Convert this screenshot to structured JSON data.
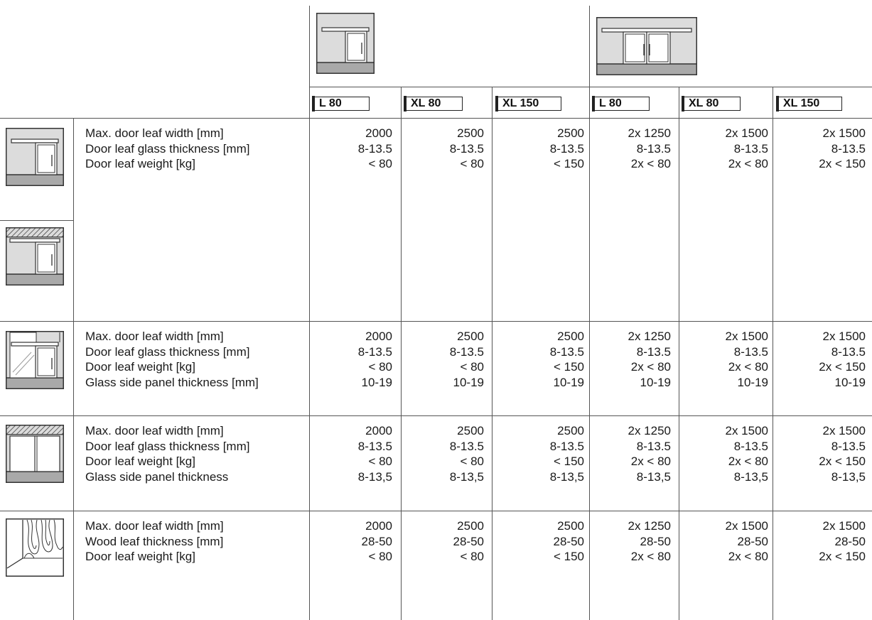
{
  "header": {
    "tags": [
      "L 80",
      "XL 80",
      "XL 150",
      "L 80",
      "XL 80",
      "XL 150"
    ],
    "group_icons": [
      "single-leaf-sliding-door-icon",
      "double-leaf-sliding-door-icon"
    ]
  },
  "sections": [
    {
      "icons": [
        "wall-mounted-sliding-door-icon",
        "ceiling-mounted-sliding-door-icon"
      ],
      "labels": [
        "Max. door leaf width [mm]",
        "Door leaf glass thickness [mm]",
        "Door leaf weight [kg]"
      ],
      "columns": [
        [
          "2000",
          "8-13.5",
          "< 80"
        ],
        [
          "2500",
          "8-13.5",
          "< 80"
        ],
        [
          "2500",
          "8-13.5",
          "< 150"
        ],
        [
          "2x 1250",
          "8-13.5",
          "2x < 80"
        ],
        [
          "2x 1500",
          "8-13.5",
          "2x < 80"
        ],
        [
          "2x 1500",
          "8-13.5",
          "2x < 150"
        ]
      ]
    },
    {
      "icons": [
        "glass-side-panel-door-icon"
      ],
      "labels": [
        "Max. door leaf width [mm]",
        "Door leaf glass thickness [mm]",
        "Door leaf weight [kg]",
        "Glass side panel thickness [mm]"
      ],
      "columns": [
        [
          "2000",
          "8-13.5",
          "< 80",
          "10-19"
        ],
        [
          "2500",
          "8-13.5",
          "< 80",
          "10-19"
        ],
        [
          "2500",
          "8-13.5",
          "< 150",
          "10-19"
        ],
        [
          "2x 1250",
          "8-13.5",
          "2x < 80",
          "10-19"
        ],
        [
          "2x 1500",
          "8-13.5",
          "2x < 80",
          "10-19"
        ],
        [
          "2x 1500",
          "8-13.5",
          "2x < 150",
          "10-19"
        ]
      ]
    },
    {
      "icons": [
        "ceiling-glass-side-panel-door-icon"
      ],
      "labels": [
        "Max. door leaf width [mm]",
        "Door leaf glass thickness [mm]",
        "Door leaf weight [kg]",
        "Glass side panel thickness"
      ],
      "columns": [
        [
          "2000",
          "8-13.5",
          "< 80",
          "8-13,5"
        ],
        [
          "2500",
          "8-13.5",
          "< 80",
          "8-13,5"
        ],
        [
          "2500",
          "8-13.5",
          "< 150",
          "8-13,5"
        ],
        [
          "2x 1250",
          "8-13.5",
          "2x < 80",
          "8-13,5"
        ],
        [
          "2x 1500",
          "8-13.5",
          "2x < 80",
          "8-13,5"
        ],
        [
          "2x 1500",
          "8-13.5",
          "2x < 150",
          "8-13,5"
        ]
      ]
    },
    {
      "icons": [
        "wooden-door-leaf-icon"
      ],
      "labels": [
        "Max. door leaf width [mm]",
        "Wood leaf thickness [mm]",
        "Door leaf weight [kg]"
      ],
      "columns": [
        [
          "2000",
          "28-50",
          "< 80"
        ],
        [
          "2500",
          "28-50",
          "< 80"
        ],
        [
          "2500",
          "28-50",
          "< 150"
        ],
        [
          "2x 1250",
          "28-50",
          "2x < 80"
        ],
        [
          "2x 1500",
          "28-50",
          "2x < 80"
        ],
        [
          "2x 1500",
          "28-50",
          "2x < 150"
        ]
      ]
    }
  ]
}
